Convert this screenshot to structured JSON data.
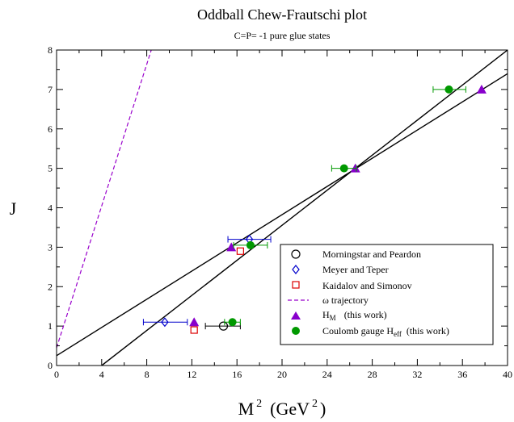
{
  "chart_data": {
    "type": "scatter",
    "title": "Oddball Chew-Frautschi plot",
    "subtitle": "C=P= -1 pure glue states",
    "ylabel": "J",
    "xlabel_parts": {
      "base": "M",
      "base_sup": "2",
      "unit_open": "(GeV",
      "unit_sup": "2",
      "unit_close": ")"
    },
    "xlim": [
      0,
      40
    ],
    "ylim": [
      0,
      8
    ],
    "xticks": [
      0,
      4,
      8,
      12,
      16,
      20,
      24,
      28,
      32,
      36,
      40
    ],
    "yticks": [
      0,
      1,
      2,
      3,
      4,
      5,
      6,
      7,
      8
    ],
    "xtick_labels": [
      "0",
      "4",
      "8",
      "12",
      "16",
      "20",
      "24",
      "28",
      "32",
      "36",
      "40"
    ],
    "ytick_labels": [
      "0",
      "1",
      "2",
      "3",
      "4",
      "5",
      "6",
      "7",
      "8"
    ],
    "grid": false,
    "legend_position": "bottom-right",
    "series": [
      {
        "name": "Morningstar and Peardon",
        "marker": "circle-open",
        "color": "#000000",
        "points": [
          {
            "x": 14.8,
            "y": 1.0,
            "xerr": [
              13.2,
              16.3
            ]
          }
        ]
      },
      {
        "name": "Meyer and Teper",
        "marker": "diamond-open",
        "color": "#0000cc",
        "points": [
          {
            "x": 9.6,
            "y": 1.1,
            "xerr": [
              7.7,
              11.6
            ]
          },
          {
            "x": 17.1,
            "y": 3.2,
            "xerr": [
              15.2,
              19.0
            ]
          }
        ]
      },
      {
        "name": "Kaidalov and Simonov",
        "marker": "square-open",
        "color": "#dd0000",
        "points": [
          {
            "x": 12.2,
            "y": 0.9
          },
          {
            "x": 16.3,
            "y": 2.9
          }
        ]
      },
      {
        "name": "ω trajectory",
        "marker": "dashed-line",
        "color": "#9900cc",
        "line": {
          "x": [
            0,
            8.4
          ],
          "y": [
            0.45,
            8.0
          ]
        }
      },
      {
        "name_main": "H",
        "name_sub": "M",
        "name_tail": "(this work)",
        "marker": "triangle-filled",
        "color": "#8800cc",
        "points": [
          {
            "x": 12.2,
            "y": 1.1
          },
          {
            "x": 15.5,
            "y": 3.0
          },
          {
            "x": 26.5,
            "y": 5.0
          },
          {
            "x": 37.7,
            "y": 7.0
          }
        ]
      },
      {
        "name_main": "Coulomb gauge H",
        "name_sub": "eff",
        "name_tail": "(this work)",
        "marker": "circle-filled",
        "color": "#009900",
        "points": [
          {
            "x": 15.6,
            "y": 1.1,
            "xerr": [
              14.9,
              16.3
            ]
          },
          {
            "x": 17.2,
            "y": 3.05,
            "xerr": [
              15.7,
              18.7
            ]
          },
          {
            "x": 25.5,
            "y": 5.0,
            "xerr": [
              24.4,
              26.6
            ]
          },
          {
            "x": 34.8,
            "y": 7.0,
            "xerr": [
              33.4,
              36.3
            ]
          }
        ]
      }
    ],
    "fit_lines": [
      {
        "color": "#000000",
        "x": [
          0,
          40
        ],
        "y": [
          0.25,
          7.4
        ]
      },
      {
        "color": "#000000",
        "x": [
          4.0,
          40
        ],
        "y": [
          0.0,
          8.0
        ]
      }
    ]
  }
}
